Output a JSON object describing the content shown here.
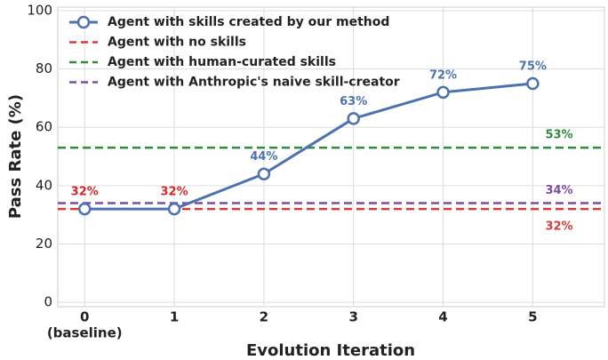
{
  "chart_data": {
    "type": "line",
    "xlabel": "Evolution Iteration",
    "ylabel": "Pass Rate (%)",
    "x": [
      0,
      1,
      2,
      3,
      4,
      5
    ],
    "xlim": [
      -0.3,
      5.8
    ],
    "xticks": [
      0,
      1,
      2,
      3,
      4,
      5
    ],
    "baseline_label": "(baseline)",
    "ylim": [
      -1.5,
      101.2
    ],
    "yticks": [
      0,
      20,
      40,
      60,
      80,
      100
    ],
    "grid": true,
    "legend": "upper left",
    "series": [
      {
        "name": "Agent with skills created by our method",
        "color": "#4c72b0",
        "values": [
          32,
          32,
          44,
          63,
          72,
          75
        ],
        "value_labels": [
          "32%",
          "32%",
          "44%",
          "63%",
          "72%",
          "75%"
        ],
        "value_label_colors": [
          "#d62728",
          "#d62728",
          "#4c72b0",
          "#4c72b0",
          "#4c72b0",
          "#4c72b0"
        ]
      }
    ],
    "reference_lines": [
      {
        "name": "Agent with no skills",
        "color": "#d63a3a",
        "value": 32,
        "value_label": "32%",
        "label_side": "below"
      },
      {
        "name": "Agent with human-curated skills",
        "color": "#2e8b3e",
        "value": 53,
        "value_label": "53%",
        "label_side": "above"
      },
      {
        "name": "Agent with Anthropic's naive skill-creator",
        "color": "#7a4fa3",
        "value": 34,
        "value_label": "34%",
        "label_side": "above"
      }
    ]
  }
}
